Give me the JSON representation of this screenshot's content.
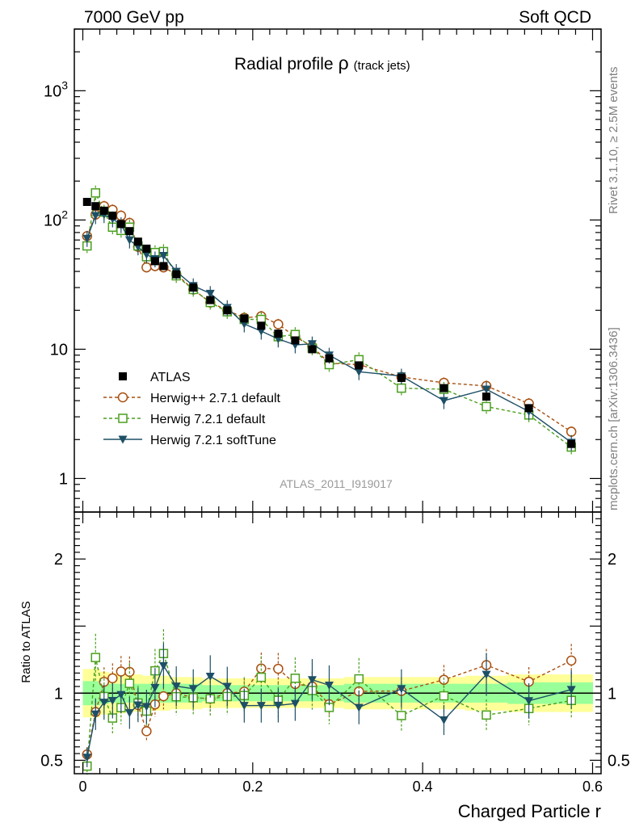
{
  "header": {
    "energy_label": "7000 GeV pp",
    "category_label": "Soft QCD"
  },
  "side_labels": {
    "rivet": "Rivet 3.1.10, ≥ 2.5M events",
    "mcplots": "mcplots.cern.ch [arXiv:1306.3436]"
  },
  "colors": {
    "atlas": "#000000",
    "herwigpp": "#a84f0f",
    "herwig721": "#4a9f1e",
    "softtune": "#1d4f66",
    "band_yellow": "#ffff99",
    "band_green": "#99ff99"
  },
  "chart_data": [
    {
      "type": "scatter",
      "panel": "main",
      "title": "Radial profile",
      "title_symbol": "ρ",
      "title_sub": "(track jets)",
      "watermark": "ATLAS_2011_I919017",
      "xlabel": "Charged Particle r",
      "ylabel": "",
      "yscale": "log",
      "xlim": [
        -0.01,
        0.61
      ],
      "ylim": [
        0.55,
        3000
      ],
      "y_ticks": [
        {
          "value": 1000,
          "base": "10",
          "exp": "3"
        },
        {
          "value": 100,
          "base": "10",
          "exp": "2"
        },
        {
          "value": 10,
          "base": "10",
          "exp": ""
        },
        {
          "value": 1,
          "base": "1",
          "exp": ""
        }
      ],
      "x_ticks": [
        0,
        0.2,
        0.4,
        0.6
      ],
      "x_tick_labels": [
        "0",
        "0.2",
        "0.4",
        "0.6"
      ],
      "x": [
        0.005,
        0.015,
        0.025,
        0.035,
        0.045,
        0.055,
        0.065,
        0.075,
        0.085,
        0.095,
        0.11,
        0.13,
        0.15,
        0.17,
        0.19,
        0.21,
        0.23,
        0.25,
        0.27,
        0.29,
        0.325,
        0.375,
        0.425,
        0.475,
        0.525,
        0.575
      ],
      "series": [
        {
          "name": "ATLAS",
          "key": "atlas",
          "marker": "square-filled",
          "line": "none",
          "values": [
            138,
            128,
            118,
            108,
            93,
            82,
            68,
            60,
            48,
            44,
            38,
            30,
            24,
            20,
            17.3,
            15.2,
            13.2,
            11.7,
            10,
            8.5,
            7.5,
            6,
            5,
            4.3,
            3.5,
            1.85
          ]
        },
        {
          "name": "Herwig++ 2.7.1 default",
          "key": "herwigpp",
          "marker": "circle-open",
          "line": "dashed",
          "values": [
            75,
            110,
            128,
            120,
            108,
            95,
            62,
            43,
            44,
            43,
            38,
            29,
            23,
            20,
            17.5,
            18,
            15.6,
            12.5,
            10.5,
            7.8,
            7.6,
            6.1,
            5.5,
            5.2,
            3.8,
            2.3
          ]
        },
        {
          "name": "Herwig 7.2.1 default",
          "key": "herwig721",
          "marker": "square-open",
          "line": "dashed",
          "values": [
            63,
            162,
            115,
            88,
            83,
            88,
            63,
            52,
            56,
            57,
            37,
            29,
            23,
            19.5,
            17,
            17,
            12.5,
            13,
            10.2,
            7.6,
            8.3,
            5,
            4.9,
            3.6,
            3.1,
            1.75
          ]
        },
        {
          "name": "Herwig 7.2.1 softTune",
          "key": "softtune",
          "marker": "triangle-down-filled",
          "line": "solid",
          "values": [
            72,
            108,
            110,
            102,
            92,
            70,
            62,
            54,
            50,
            53,
            40,
            31,
            27,
            21,
            15.7,
            13.8,
            12,
            10.8,
            11,
            9,
            6.7,
            6.2,
            4,
            4.9,
            3.3,
            1.9
          ]
        }
      ],
      "error_fraction": {
        "atlas": 0.02,
        "herwigpp": 0.1,
        "herwig721": 0.14,
        "softtune": 0.14
      }
    },
    {
      "type": "scatter",
      "panel": "ratio",
      "ylabel": "Ratio to ATLAS",
      "ylim": [
        0.4,
        2.35
      ],
      "y_ticks": [
        0.5,
        1,
        2
      ],
      "y_tick_labels": [
        "0.5",
        "1",
        "2"
      ],
      "reference_line": 1,
      "band_yellow": [
        0.18,
        0.18,
        0.16,
        0.15,
        0.15,
        0.14,
        0.14,
        0.13,
        0.13,
        0.13,
        0.12,
        0.12,
        0.11,
        0.11,
        0.11,
        0.11,
        0.11,
        0.11,
        0.11,
        0.11,
        0.12,
        0.12,
        0.12,
        0.13,
        0.14,
        0.14
      ],
      "band_green": [
        0.09,
        0.09,
        0.08,
        0.07,
        0.07,
        0.07,
        0.07,
        0.07,
        0.07,
        0.07,
        0.07,
        0.07,
        0.06,
        0.06,
        0.06,
        0.06,
        0.06,
        0.06,
        0.06,
        0.06,
        0.07,
        0.07,
        0.07,
        0.07,
        0.08,
        0.08
      ]
    }
  ]
}
